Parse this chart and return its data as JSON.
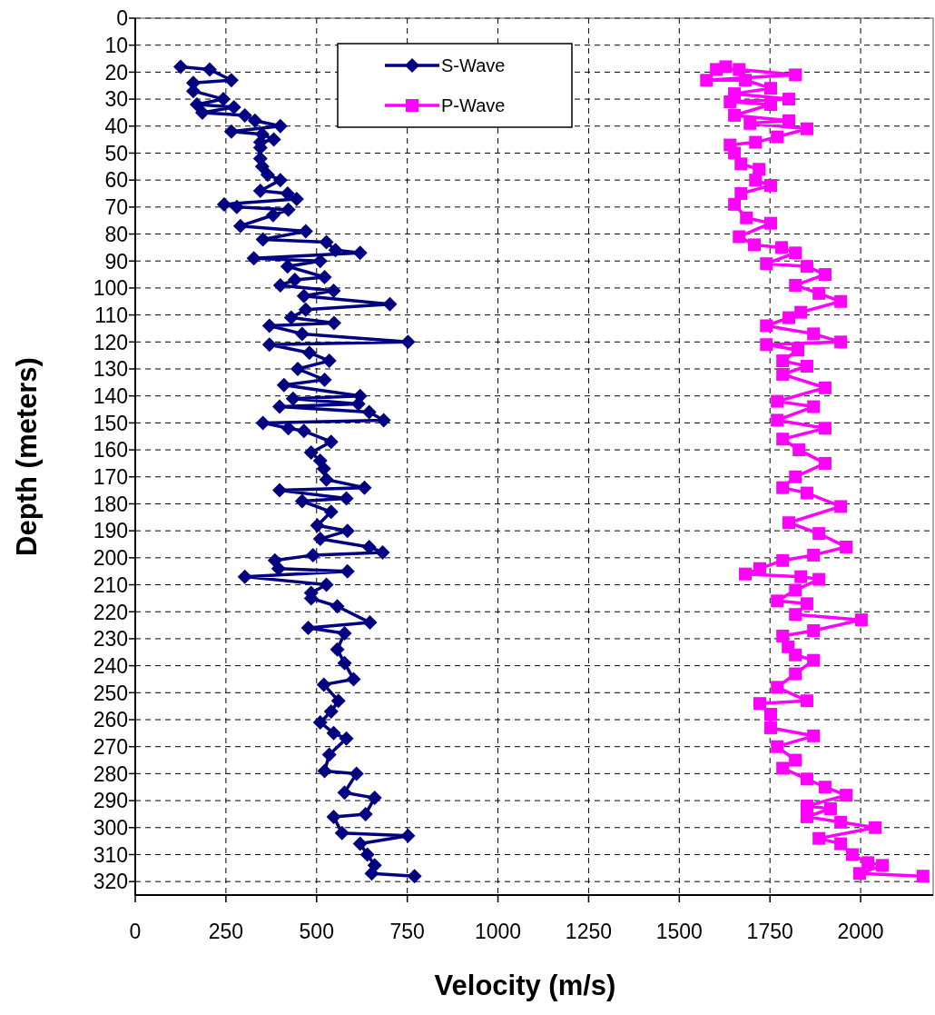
{
  "chart_data": {
    "type": "line",
    "xlabel": "Velocity (m/s)",
    "ylabel": "Depth (meters)",
    "xlim": [
      0,
      2200
    ],
    "ylim": [
      325,
      0
    ],
    "xticks": [
      0,
      250,
      500,
      750,
      1000,
      1250,
      1500,
      1750,
      2000
    ],
    "yticks": [
      0,
      10,
      20,
      30,
      40,
      50,
      60,
      70,
      80,
      90,
      100,
      110,
      120,
      130,
      140,
      150,
      160,
      170,
      180,
      190,
      200,
      210,
      220,
      230,
      240,
      250,
      260,
      270,
      280,
      290,
      300,
      310,
      320
    ],
    "grid": true,
    "legend": "top",
    "series": [
      {
        "name": "S-Wave",
        "color": "#000080",
        "marker": "diamond",
        "x": [
          125,
          205,
          265,
          160,
          160,
          243,
          170,
          272,
          185,
          302,
          330,
          400,
          265,
          350,
          382,
          345,
          345,
          345,
          350,
          365,
          400,
          345,
          420,
          445,
          245,
          280,
          422,
          380,
          290,
          470,
          352,
          527,
          552,
          620,
          327,
          510,
          420,
          522,
          440,
          400,
          547,
          465,
          702,
          470,
          430,
          548,
          370,
          460,
          752,
          370,
          480,
          535,
          448,
          522,
          410,
          620,
          435,
          615,
          398,
          645,
          685,
          352,
          422,
          465,
          540,
          485,
          510,
          520,
          527,
          632,
          398,
          582,
          460,
          540,
          502,
          585,
          510,
          645,
          682,
          490,
          385,
          395,
          585,
          302,
          527,
          485,
          485,
          557,
          647,
          477,
          577,
          557,
          577,
          602,
          520,
          560,
          540,
          510,
          547,
          582,
          535,
          522,
          610,
          577,
          660,
          635,
          547,
          570,
          752,
          620,
          640,
          660,
          652,
          770
        ],
        "values": [
          18,
          19,
          23,
          24,
          27,
          30,
          32,
          33,
          35,
          36,
          38,
          40,
          42,
          43,
          45,
          46,
          48,
          52,
          55,
          58,
          60,
          64,
          65,
          67,
          69,
          70,
          71,
          73,
          77,
          79,
          82,
          83,
          86,
          87,
          89,
          90,
          92,
          96,
          97,
          99,
          101,
          103,
          106,
          108,
          111,
          113,
          114,
          117,
          120,
          121,
          124,
          127,
          130,
          134,
          136,
          140,
          141,
          143,
          144,
          146,
          149,
          150,
          152,
          153,
          157,
          161,
          164,
          167,
          171,
          174,
          175,
          178,
          179,
          183,
          188,
          190,
          193,
          196,
          198,
          199,
          201,
          204,
          205,
          207,
          210,
          213,
          215,
          218,
          224,
          226,
          228,
          234,
          239,
          245,
          247,
          253,
          257,
          261,
          265,
          267,
          273,
          279,
          280,
          287,
          289,
          295,
          296,
          302,
          303,
          306,
          310,
          314,
          317,
          318
        ]
      },
      {
        "name": "P-Wave",
        "color": "#ff00ff",
        "marker": "square",
        "x": [
          1628,
          1602,
          1665,
          1820,
          1575,
          1682,
          1752,
          1652,
          1802,
          1640,
          1752,
          1652,
          1802,
          1695,
          1852,
          1770,
          1710,
          1640,
          1652,
          1670,
          1720,
          1710,
          1752,
          1670,
          1652,
          1685,
          1752,
          1665,
          1707,
          1782,
          1820,
          1740,
          1852,
          1902,
          1820,
          1885,
          1945,
          1835,
          1802,
          1740,
          1870,
          1945,
          1740,
          1827,
          1785,
          1852,
          1785,
          1902,
          1770,
          1870,
          1770,
          1902,
          1785,
          1830,
          1902,
          1820,
          1785,
          1852,
          1945,
          1802,
          1885,
          1960,
          1870,
          1785,
          1722,
          1682,
          1835,
          1885,
          1820,
          1770,
          1852,
          1820,
          2002,
          1870,
          1785,
          1800,
          1820,
          1870,
          1820,
          1770,
          1852,
          1722,
          1752,
          1752,
          1870,
          1770,
          1820,
          1785,
          1852,
          1902,
          1960,
          1852,
          1917,
          1852,
          1945,
          2040,
          1885,
          1945,
          1977,
          2020,
          2060,
          1997,
          2172
        ],
        "values": [
          18,
          19,
          19,
          21,
          23,
          23,
          26,
          28,
          30,
          31,
          32,
          36,
          38,
          39,
          41,
          44,
          46,
          47,
          50,
          54,
          56,
          60,
          62,
          65,
          69,
          74,
          76,
          81,
          84,
          85,
          87,
          91,
          92,
          95,
          99,
          102,
          105,
          109,
          111,
          114,
          117,
          120,
          121,
          123,
          127,
          129,
          132,
          137,
          142,
          144,
          149,
          152,
          156,
          160,
          165,
          170,
          174,
          176,
          181,
          187,
          191,
          196,
          199,
          201,
          204,
          206,
          207,
          208,
          212,
          216,
          217,
          221,
          223,
          227,
          229,
          233,
          236,
          238,
          243,
          248,
          253,
          254,
          258,
          263,
          266,
          270,
          275,
          278,
          282,
          285,
          288,
          292,
          293,
          296,
          298,
          300,
          304,
          306,
          310,
          313,
          314,
          317,
          318
        ]
      }
    ]
  }
}
